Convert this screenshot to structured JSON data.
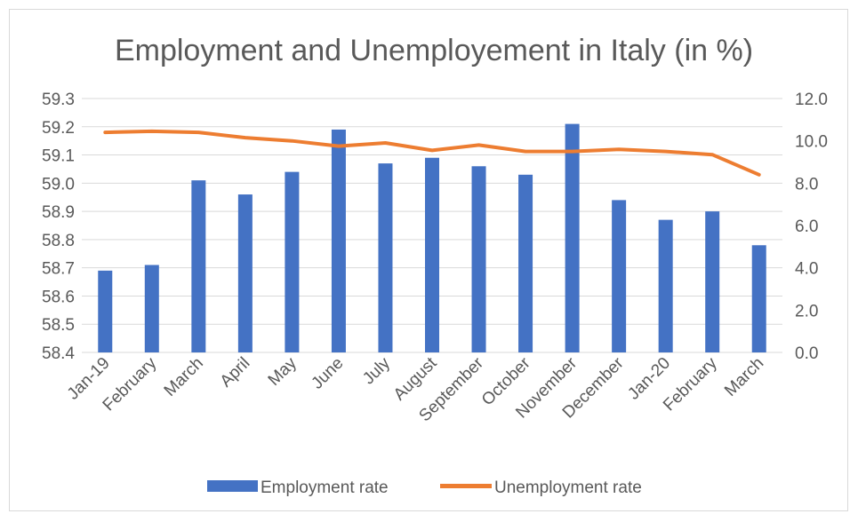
{
  "chart_data": {
    "type": "bar",
    "title": "Employment and Unemployement in Italy (in %)",
    "categories": [
      "Jan-19",
      "February",
      "March",
      "April",
      "May",
      "June",
      "July",
      "August",
      "September",
      "October",
      "November",
      "December",
      "Jan-20",
      "February",
      "March"
    ],
    "series": [
      {
        "name": "Employment rate",
        "type": "bar",
        "axis": "left",
        "color": "#4472c4",
        "values": [
          58.69,
          58.71,
          59.01,
          58.96,
          59.04,
          59.19,
          59.07,
          59.09,
          59.06,
          59.03,
          59.21,
          58.94,
          58.87,
          58.9,
          58.78
        ]
      },
      {
        "name": "Unemployment rate",
        "type": "line",
        "axis": "right",
        "color": "#ed7d31",
        "values": [
          10.4,
          10.45,
          10.4,
          10.15,
          10.0,
          9.75,
          9.9,
          9.55,
          9.8,
          9.5,
          9.5,
          9.6,
          9.5,
          9.35,
          8.4
        ]
      }
    ],
    "y_left": {
      "min": 58.4,
      "max": 59.3,
      "step": 0.1,
      "ticks": [
        "58.4",
        "58.5",
        "58.6",
        "58.7",
        "58.8",
        "58.9",
        "59.0",
        "59.1",
        "59.2",
        "59.3"
      ]
    },
    "y_right": {
      "min": 0,
      "max": 12,
      "step": 2,
      "ticks": [
        "0.0",
        "2.0",
        "4.0",
        "6.0",
        "8.0",
        "10.0",
        "12.0"
      ]
    },
    "grid": true,
    "legend_position": "bottom"
  }
}
